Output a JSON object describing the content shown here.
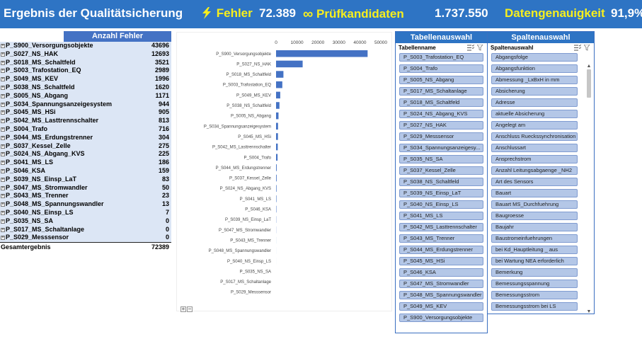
{
  "banner": {
    "title": "Ergebnis der Qualitätsicherung",
    "error_label": "Fehler",
    "error_value": "72.389",
    "candidates_label": "Prüfkandidaten",
    "candidates_value": "1.737.550",
    "accuracy_label": "Datengenauigkeit",
    "accuracy_value": "91,9%",
    "bolt_icon": "lightning-bolt-icon",
    "infinity_icon": "infinity-icon",
    "accent_color": "#f7ef1d",
    "bar_color": "#2e74c4"
  },
  "pivot": {
    "header": "Anzahl Fehler",
    "rows": [
      {
        "label": "P_S900_Versorgungsobjekte",
        "value": "43696"
      },
      {
        "label": "P_S027_NS_HAK",
        "value": "12693"
      },
      {
        "label": "P_S018_MS_Schaltfeld",
        "value": "3521"
      },
      {
        "label": "P_S003_Trafostation_EQ",
        "value": "2989"
      },
      {
        "label": "P_S049_MS_KEV",
        "value": "1996"
      },
      {
        "label": "P_S038_NS_Schaltfeld",
        "value": "1620"
      },
      {
        "label": "P_S005_NS_Abgang",
        "value": "1171"
      },
      {
        "label": "P_S034_Spannungsanzeigesystem",
        "value": "944"
      },
      {
        "label": "P_S045_MS_HSi",
        "value": "905"
      },
      {
        "label": "P_S042_MS_Lasttrennschalter",
        "value": "813"
      },
      {
        "label": "P_S004_Trafo",
        "value": "716"
      },
      {
        "label": "P_S044_MS_Erdungstrenner",
        "value": "304"
      },
      {
        "label": "P_S037_Kessel_Zelle",
        "value": "275"
      },
      {
        "label": "P_S024_NS_Abgang_KVS",
        "value": "225"
      },
      {
        "label": "P_S041_MS_LS",
        "value": "186"
      },
      {
        "label": "P_S046_KSA",
        "value": "159"
      },
      {
        "label": "P_S039_NS_Einsp_LaT",
        "value": "83"
      },
      {
        "label": "P_S047_MS_Stromwandler",
        "value": "50"
      },
      {
        "label": "P_S043_MS_Trenner",
        "value": "23"
      },
      {
        "label": "P_S048_MS_Spannungswandler",
        "value": "13"
      },
      {
        "label": "P_S040_NS_Einsp_LS",
        "value": "7"
      },
      {
        "label": "P_S035_NS_SA",
        "value": "0"
      },
      {
        "label": "P_S017_MS_Schaltanlage",
        "value": "0"
      },
      {
        "label": "P_S029_Messsensor",
        "value": "0"
      }
    ],
    "total_label": "Gesamtergebnis",
    "total_value": "72389",
    "expand_icon": "plus-expand-icon"
  },
  "chart_data": {
    "type": "bar",
    "orientation": "horizontal",
    "categories": [
      "P_S900_Versorgungsobjekte",
      "P_S027_NS_HAK",
      "P_S018_MS_Schaltfeld",
      "P_S003_Trafostation_EQ",
      "P_S049_MS_KEV",
      "P_S038_NS_Schaltfeld",
      "P_S005_NS_Abgang",
      "P_S034_Spannungsanzeigesystem",
      "P_S045_MS_HSi",
      "P_S042_MS_Lasttrennschalter",
      "P_S004_Trafo",
      "P_S044_MS_Erdungstrenner",
      "P_S037_Kessel_Zelle",
      "P_S024_NS_Abgang_KVS",
      "P_S041_MS_LS",
      "P_S046_KSA",
      "P_S039_NS_Einsp_LaT",
      "P_S047_MS_Stromwandler",
      "P_S043_MS_Trenner",
      "P_S048_MS_Spannungswandler",
      "P_S040_NS_Einsp_LS",
      "P_S035_NS_SA",
      "P_S017_MS_Schaltanlage",
      "P_S029_Messsensor"
    ],
    "values": [
      43696,
      12693,
      3521,
      2989,
      1996,
      1620,
      1171,
      944,
      905,
      813,
      716,
      304,
      275,
      225,
      186,
      159,
      83,
      50,
      23,
      13,
      7,
      0,
      0,
      0
    ],
    "x_ticks": [
      "0",
      "10000",
      "20000",
      "30000",
      "40000",
      "50000"
    ],
    "xlim": [
      0,
      50000
    ],
    "title": "",
    "xlabel": "",
    "ylabel": "",
    "grid": false,
    "bar_color": "#4472c4",
    "zoom_buttons": [
      "+",
      "−"
    ]
  },
  "table_slicer": {
    "header": "Tabellenauswahl",
    "sub_label": "Tabellenname",
    "icons": [
      "multi-select-icon",
      "clear-filter-icon"
    ],
    "items": [
      "P_S003_Trafostation_EQ",
      "P_S004_Trafo",
      "P_S005_NS_Abgang",
      "P_S017_MS_Schaltanlage",
      "P_S018_MS_Schaltfeld",
      "P_S024_NS_Abgang_KVS",
      "P_S027_NS_HAK",
      "P_S029_Messsensor",
      "P_S034_Spannungsanzeigesy...",
      "P_S035_NS_SA",
      "P_S037_Kessel_Zelle",
      "P_S038_NS_Schaltfeld",
      "P_S039_NS_Einsp_LaT",
      "P_S040_NS_Einsp_LS",
      "P_S041_MS_LS",
      "P_S042_MS_Lasttrennschalter",
      "P_S043_MS_Trenner",
      "P_S044_MS_Erdungstrenner",
      "P_S045_MS_HSi",
      "P_S046_KSA",
      "P_S047_MS_Stromwandler",
      "P_S048_MS_Spannungswandler",
      "P_S049_MS_KEV",
      "P_S900_Versorgungsobjekte"
    ]
  },
  "column_slicer": {
    "header": "Spaltenauswahl",
    "sub_label": "Spaltenauswahl",
    "icons": [
      "multi-select-icon",
      "clear-filter-icon"
    ],
    "items": [
      "Abgangsfolge",
      "Abgangsfunktion",
      "Abmessung _LxBxH in mm",
      "Absicherung",
      "Adresse",
      "aktuelle Absicherung",
      "Angelegt am",
      "Anschluss Rueckssynchronisation",
      "Anschlussart",
      "Ansprechstrom",
      "Anzahl Leitungsabgaenge _NH2",
      "Art des Sensors",
      "Bauart",
      "Bauart MS_Durchfuehrung",
      "Baugroesse",
      "Baujahr",
      "Baustromeinfuehrungen",
      "bei Kd_Hauptleitung _ aus",
      "bei Wartung NEA erforderlich",
      "Bemerkung",
      "Bemessungsspannung",
      "Bemessungsstrom",
      "Bemessungsstrom bei LS"
    ],
    "scroll_up_icon": "scroll-up-arrow-icon",
    "scroll_down_icon": "scroll-down-arrow-icon"
  }
}
